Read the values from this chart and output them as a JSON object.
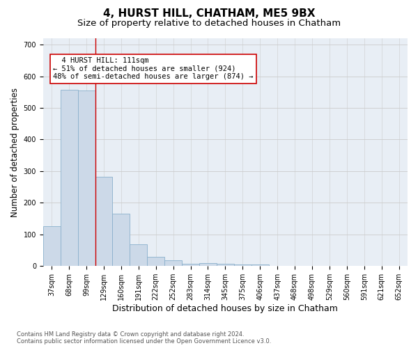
{
  "title": "4, HURST HILL, CHATHAM, ME5 9BX",
  "subtitle": "Size of property relative to detached houses in Chatham",
  "xlabel": "Distribution of detached houses by size in Chatham",
  "ylabel": "Number of detached properties",
  "categories": [
    "37sqm",
    "68sqm",
    "99sqm",
    "129sqm",
    "160sqm",
    "191sqm",
    "222sqm",
    "252sqm",
    "283sqm",
    "314sqm",
    "345sqm",
    "375sqm",
    "406sqm",
    "437sqm",
    "468sqm",
    "498sqm",
    "529sqm",
    "560sqm",
    "591sqm",
    "621sqm",
    "652sqm"
  ],
  "bar_heights": [
    125,
    558,
    555,
    283,
    165,
    68,
    30,
    17,
    8,
    10,
    8,
    5,
    4,
    0,
    0,
    0,
    0,
    0,
    0,
    0,
    0
  ],
  "bar_color": "#ccd9e8",
  "bar_edge_color": "#8ab0cc",
  "bar_width": 1.0,
  "vline_x": 2.5,
  "vline_color": "#cc0000",
  "annotation_text": "  4 HURST HILL: 111sqm\n← 51% of detached houses are smaller (924)\n48% of semi-detached houses are larger (874) →",
  "annotation_box_color": "#ffffff",
  "annotation_box_edge_color": "#cc0000",
  "ylim": [
    0,
    720
  ],
  "yticks": [
    0,
    100,
    200,
    300,
    400,
    500,
    600,
    700
  ],
  "grid_color": "#cccccc",
  "bg_color": "#e8eef5",
  "footnote": "Contains HM Land Registry data © Crown copyright and database right 2024.\nContains public sector information licensed under the Open Government Licence v3.0.",
  "title_fontsize": 11,
  "subtitle_fontsize": 9.5,
  "xlabel_fontsize": 9,
  "ylabel_fontsize": 8.5,
  "tick_fontsize": 7,
  "annotation_fontsize": 7.5
}
